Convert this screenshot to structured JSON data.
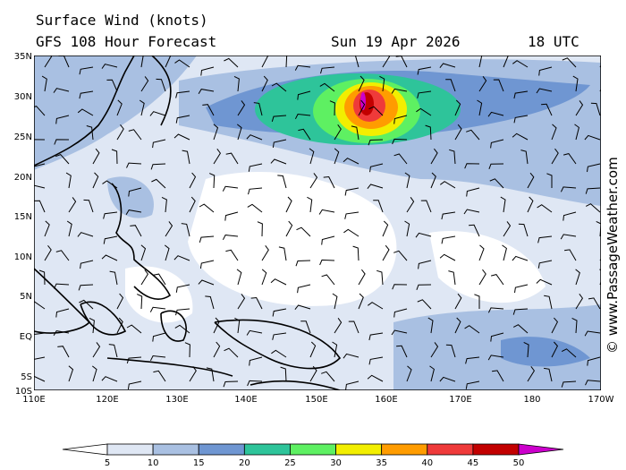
{
  "header": {
    "title": "Surface Wind (knots)",
    "subtitle": "GFS 108 Hour Forecast",
    "date": "Sun 19 Apr 2026",
    "time": "18 UTC"
  },
  "map": {
    "lat_labels": [
      "35N",
      "30N",
      "25N",
      "20N",
      "15N",
      "10N",
      "5N",
      "EQ",
      "5S",
      "10S"
    ],
    "lon_labels": [
      "110E",
      "120E",
      "130E",
      "140E",
      "150E",
      "160E",
      "170E",
      "180",
      "170W"
    ]
  },
  "colorbar": {
    "ticks": [
      5,
      10,
      15,
      20,
      25,
      30,
      35,
      40,
      45,
      50
    ],
    "colors": [
      "#ffffff",
      "#dfe7f4",
      "#a9c0e2",
      "#6f96d2",
      "#2ec49a",
      "#5ef062",
      "#f2ee00",
      "#ff9c00",
      "#ef3a3a",
      "#c20000",
      "#cc00cc"
    ]
  },
  "watermark": "© www.PassageWeather.com"
}
